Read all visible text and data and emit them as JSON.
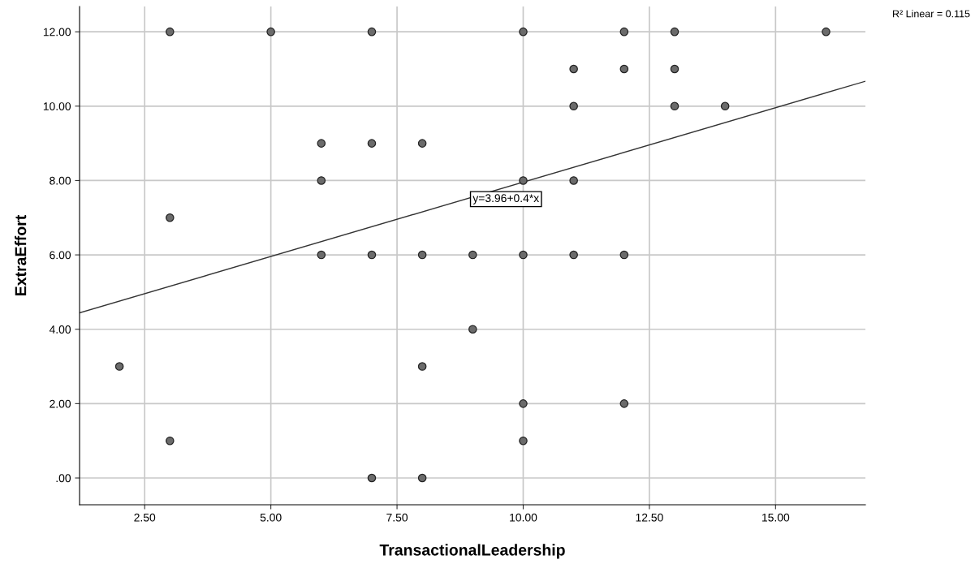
{
  "chart_data": {
    "type": "scatter",
    "xlabel": "TransactionalLeadership",
    "ylabel": "ExtraEffort",
    "xlim": [
      1.21,
      16.78
    ],
    "ylim": [
      -0.72,
      12.68
    ],
    "xticks": [
      {
        "value": 2.5,
        "label": "2.50"
      },
      {
        "value": 5,
        "label": "5.00"
      },
      {
        "value": 7.5,
        "label": "7.50"
      },
      {
        "value": 10,
        "label": "10.00"
      },
      {
        "value": 12.5,
        "label": "12.50"
      },
      {
        "value": 15,
        "label": "15.00"
      }
    ],
    "yticks": [
      {
        "value": 0,
        "label": ".00"
      },
      {
        "value": 2,
        "label": "2.00"
      },
      {
        "value": 4,
        "label": "4.00"
      },
      {
        "value": 6,
        "label": "6.00"
      },
      {
        "value": 8,
        "label": "8.00"
      },
      {
        "value": 10,
        "label": "10.00"
      },
      {
        "value": 12,
        "label": "12.00"
      }
    ],
    "grid": true,
    "legend": false,
    "series": [
      {
        "marker": "circle",
        "color": "#6b6b6b",
        "x": [
          3,
          5,
          7,
          10,
          12,
          13,
          16,
          11,
          12,
          13,
          11,
          13,
          14,
          6,
          7,
          8,
          6,
          10,
          11,
          3,
          6,
          7,
          8,
          9,
          10,
          11,
          12,
          9,
          2,
          8,
          10,
          12,
          3,
          10,
          7,
          8
        ],
        "values": [
          12,
          12,
          12,
          12,
          12,
          12,
          12,
          11,
          11,
          11,
          10,
          10,
          10,
          9,
          9,
          9,
          8,
          8,
          8,
          7,
          6,
          6,
          6,
          6,
          6,
          6,
          6,
          4,
          3,
          3,
          2,
          2,
          1,
          1,
          0,
          0
        ]
      },
      {
        "type": "line",
        "marker": "none",
        "color": "#333333",
        "x": [
          1.21,
          16.78
        ],
        "values": [
          4.44,
          10.67
        ]
      }
    ],
    "annotations": [
      {
        "text": "y=3.96+0.4*x",
        "x": 9,
        "y": 7.5
      },
      "R² Linear = 0.115"
    ]
  }
}
